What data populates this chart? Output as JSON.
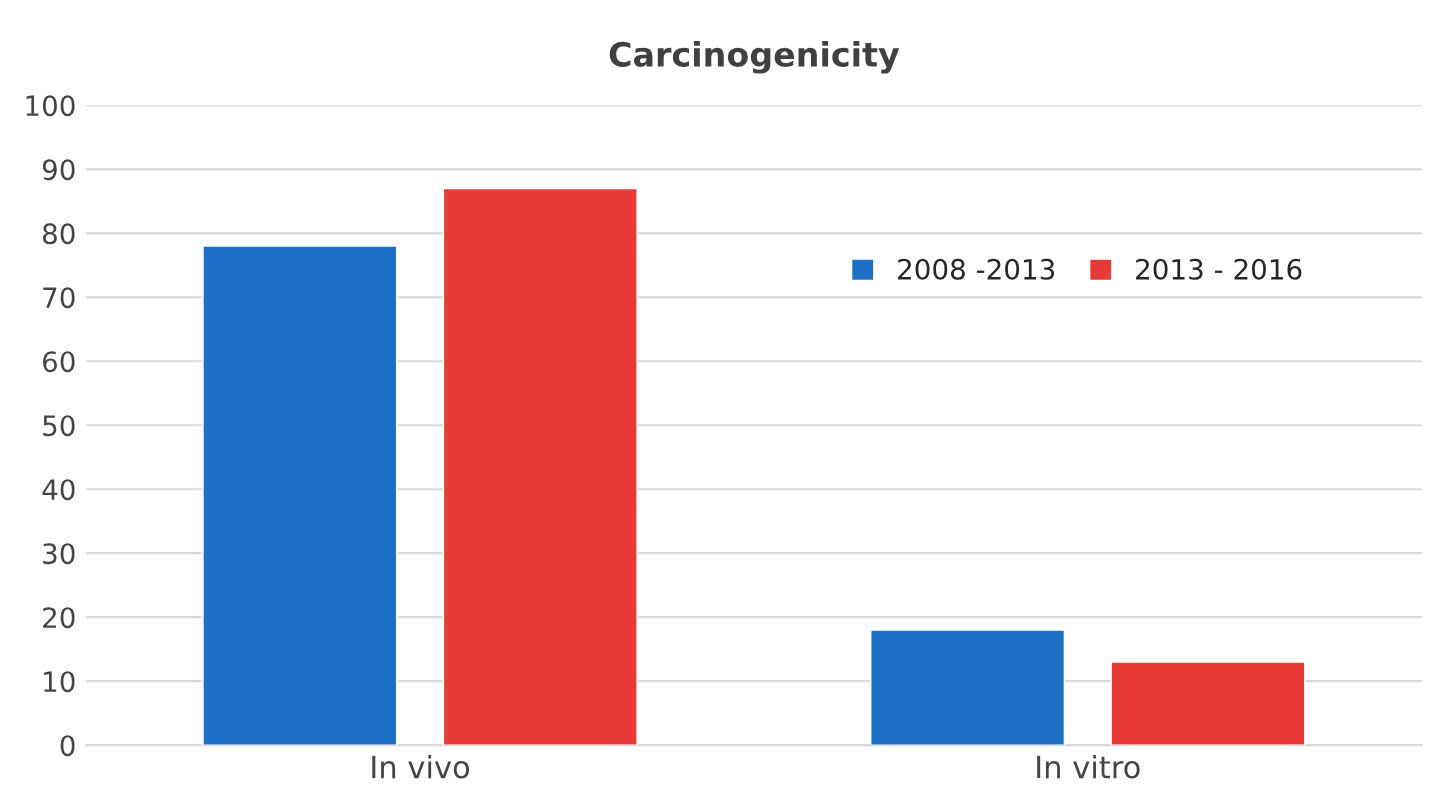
{
  "chart_data": {
    "type": "bar",
    "title": "Carcinogenicity",
    "categories": [
      "In vivo",
      "In vitro"
    ],
    "series": [
      {
        "name": "2008 -2013",
        "color": "#1c6fc4",
        "values": [
          78,
          18
        ]
      },
      {
        "name": "2013 - 2016",
        "color": "#e83a36",
        "values": [
          87,
          13
        ]
      }
    ],
    "ylim": [
      0,
      100
    ],
    "yticks": [
      0,
      10,
      20,
      30,
      40,
      50,
      60,
      70,
      80,
      90,
      100
    ],
    "grid": "y",
    "legend": "top right"
  }
}
